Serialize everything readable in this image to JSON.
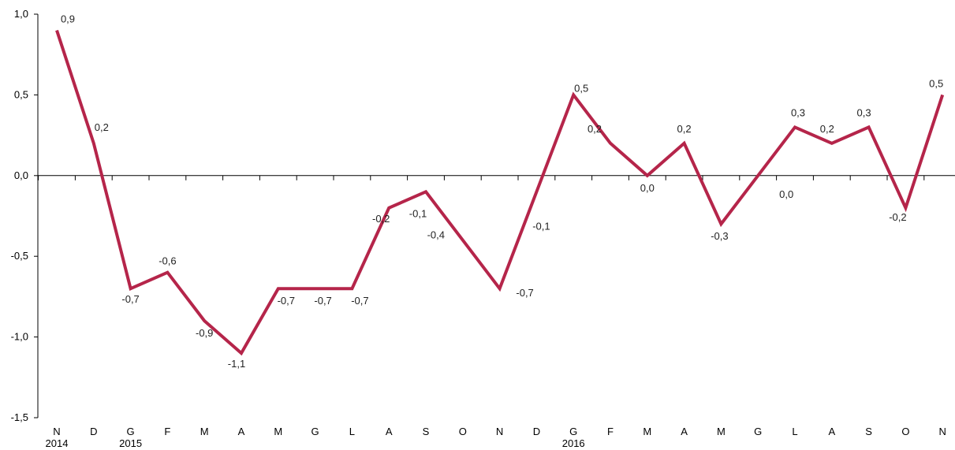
{
  "chart_data": {
    "type": "line",
    "categories": [
      "N",
      "D",
      "G",
      "F",
      "M",
      "A",
      "M",
      "G",
      "L",
      "A",
      "S",
      "O",
      "N",
      "D",
      "G",
      "F",
      "M",
      "A",
      "M",
      "G",
      "L",
      "A",
      "S",
      "O",
      "N"
    ],
    "year_labels": [
      {
        "index": 0,
        "text": "2014"
      },
      {
        "index": 2,
        "text": "2015"
      },
      {
        "index": 14,
        "text": "2016"
      }
    ],
    "series": [
      {
        "values": [
          0.9,
          0.2,
          -0.7,
          -0.6,
          -0.9,
          -1.1,
          -0.7,
          -0.7,
          -0.7,
          -0.2,
          -0.1,
          -0.4,
          -0.7,
          -0.1,
          0.5,
          0.2,
          0.0,
          0.2,
          -0.3,
          0.0,
          0.3,
          0.2,
          0.3,
          -0.2,
          0.5
        ],
        "data_labels": [
          "0,9",
          "0,2",
          "-0,7",
          "-0,6",
          "-0,9",
          "-1,1",
          "-0,7",
          "-0,7",
          "-0,7",
          "-0,2",
          "-0,1",
          "-0,4",
          "-0,7",
          "-0,1",
          "0,5",
          "0,2",
          "0,0",
          "0,2",
          "-0,3",
          "0,0",
          "0,3",
          "0,2",
          "0,3",
          "-0,2",
          "0,5"
        ],
        "color": "#b5254a"
      }
    ],
    "ylim": [
      -1.5,
      1.0
    ],
    "yticks": [
      1.0,
      0.5,
      0.0,
      -0.5,
      -1.0,
      -1.5
    ],
    "ytick_labels": [
      "1,0",
      "0,5",
      "0,0",
      "-0,5",
      "-1,0",
      "-1,5"
    ],
    "grid": false,
    "title": "",
    "xlabel": "",
    "ylabel": ""
  }
}
